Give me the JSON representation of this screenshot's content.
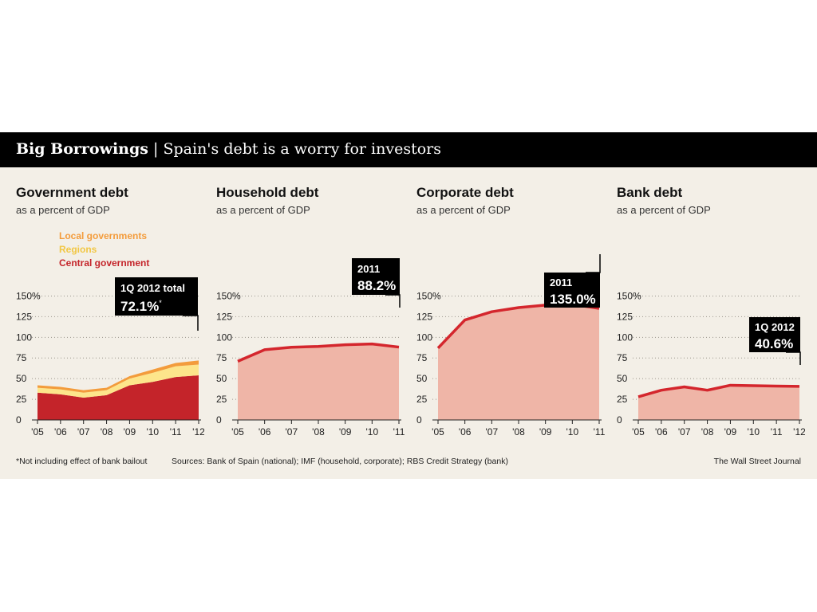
{
  "header": {
    "title": "Big Borrowings",
    "separator": "|",
    "subtitle": "Spain's debt is a worry for investors"
  },
  "colors": {
    "fill_light": "#efb5a7",
    "line_red": "#d4262d",
    "central": "#c4242a",
    "regions": "#fde58b",
    "local": "#f39c3c",
    "bg": "#f3efe7",
    "callout_bg": "#000000"
  },
  "footnote": "*Not including effect of bank bailout",
  "sources": "Sources: Bank of Spain (national); IMF (household, corporate); RBS Credit Strategy (bank)",
  "credit": "The Wall Street Journal",
  "chart_data": [
    {
      "type": "area",
      "title": "Government debt",
      "subtitle": "as a percent of GDP",
      "x": [
        "'05",
        "'06",
        "'07",
        "'08",
        "'09",
        "'10",
        "'11",
        "'12"
      ],
      "yticks": [
        "150%",
        "125",
        "100",
        "75",
        "50",
        "25",
        "0"
      ],
      "ylim": [
        0,
        150
      ],
      "stacked": true,
      "series": [
        {
          "name": "Central government",
          "values": [
            33,
            31,
            27,
            30,
            42,
            46,
            52,
            54
          ]
        },
        {
          "name": "Regions",
          "values": [
            6,
            6,
            6,
            6,
            8,
            11,
            13,
            13
          ]
        },
        {
          "name": "Local governments",
          "values": [
            3,
            3,
            3,
            3,
            3,
            4,
            4,
            5
          ]
        }
      ],
      "callout": {
        "line1": "1Q 2012 total",
        "line2": "72.1%",
        "sup": "*"
      }
    },
    {
      "type": "area",
      "title": "Household debt",
      "subtitle": "as a percent of GDP",
      "x": [
        "'05",
        "'06",
        "'07",
        "'08",
        "'09",
        "'10",
        "'11"
      ],
      "yticks": [
        "150%",
        "125",
        "100",
        "75",
        "50",
        "25",
        "0"
      ],
      "ylim": [
        0,
        150
      ],
      "values": [
        71,
        85,
        88,
        89,
        91,
        92,
        88.2
      ],
      "callout": {
        "line1": "2011",
        "line2": "88.2%"
      }
    },
    {
      "type": "area",
      "title": "Corporate debt",
      "subtitle": "as a percent of GDP",
      "x": [
        "'05",
        "'06",
        "'07",
        "'08",
        "'09",
        "'10",
        "'11"
      ],
      "yticks": [
        "150%",
        "125",
        "100",
        "75",
        "50",
        "25",
        "0"
      ],
      "ylim": [
        0,
        150
      ],
      "values": [
        87,
        121,
        131,
        136,
        139,
        140,
        135.0
      ],
      "callout": {
        "line1": "2011",
        "line2": "135.0%"
      }
    },
    {
      "type": "area",
      "title": "Bank debt",
      "subtitle": "as a percent of GDP",
      "x": [
        "'05",
        "'06",
        "'07",
        "'08",
        "'09",
        "'10",
        "'11",
        "'12"
      ],
      "yticks": [
        "150%",
        "125",
        "100",
        "75",
        "50",
        "25",
        "0"
      ],
      "ylim": [
        0,
        150
      ],
      "values": [
        28,
        36,
        40,
        36,
        42,
        41.5,
        41,
        40.6
      ],
      "callout": {
        "line1": "1Q 2012",
        "line2": "40.6%"
      }
    }
  ]
}
